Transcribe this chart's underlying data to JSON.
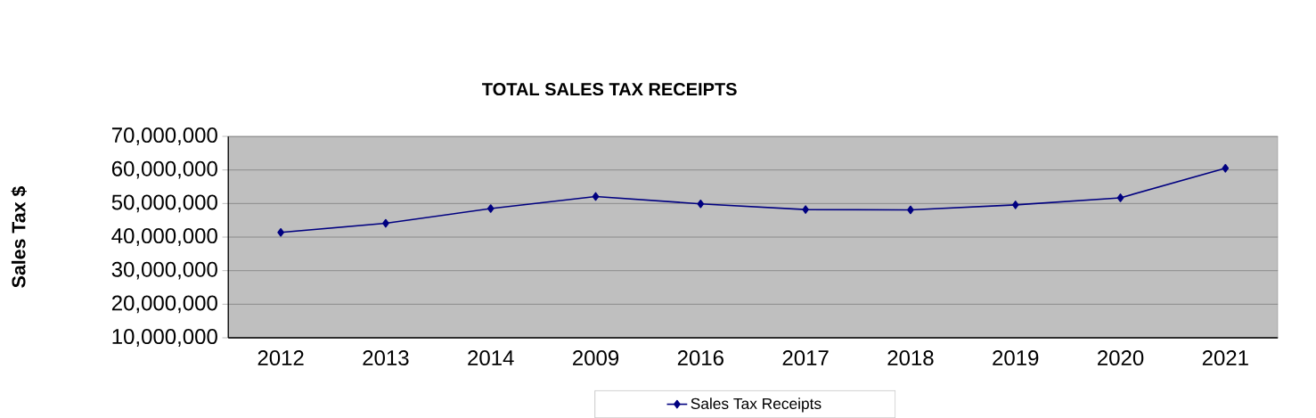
{
  "chart_data": {
    "type": "line",
    "title": "TOTAL SALES TAX RECEIPTS",
    "ylabel": "Sales Tax $",
    "categories": [
      "2012",
      "2013",
      "2014",
      "2009",
      "2016",
      "2017",
      "2018",
      "2019",
      "2020",
      "2021"
    ],
    "series": [
      {
        "name": "Sales Tax Receipts",
        "color": "#000080",
        "values": [
          41400000,
          44100000,
          48500000,
          52100000,
          49900000,
          48200000,
          48100000,
          49600000,
          51700000,
          60500000
        ]
      }
    ],
    "ylim": [
      10000000,
      70000000
    ],
    "yticks": [
      {
        "value": 10000000,
        "label": "10,000,000"
      },
      {
        "value": 20000000,
        "label": "20,000,000"
      },
      {
        "value": 30000000,
        "label": "30,000,000"
      },
      {
        "value": 40000000,
        "label": "40,000,000"
      },
      {
        "value": 50000000,
        "label": "50,000,000"
      },
      {
        "value": 60000000,
        "label": "60,000,000"
      },
      {
        "value": 70000000,
        "label": "70,000,000"
      }
    ],
    "grid": "y",
    "legend": "bottom",
    "marker": "diamond",
    "line_style": "solid"
  }
}
